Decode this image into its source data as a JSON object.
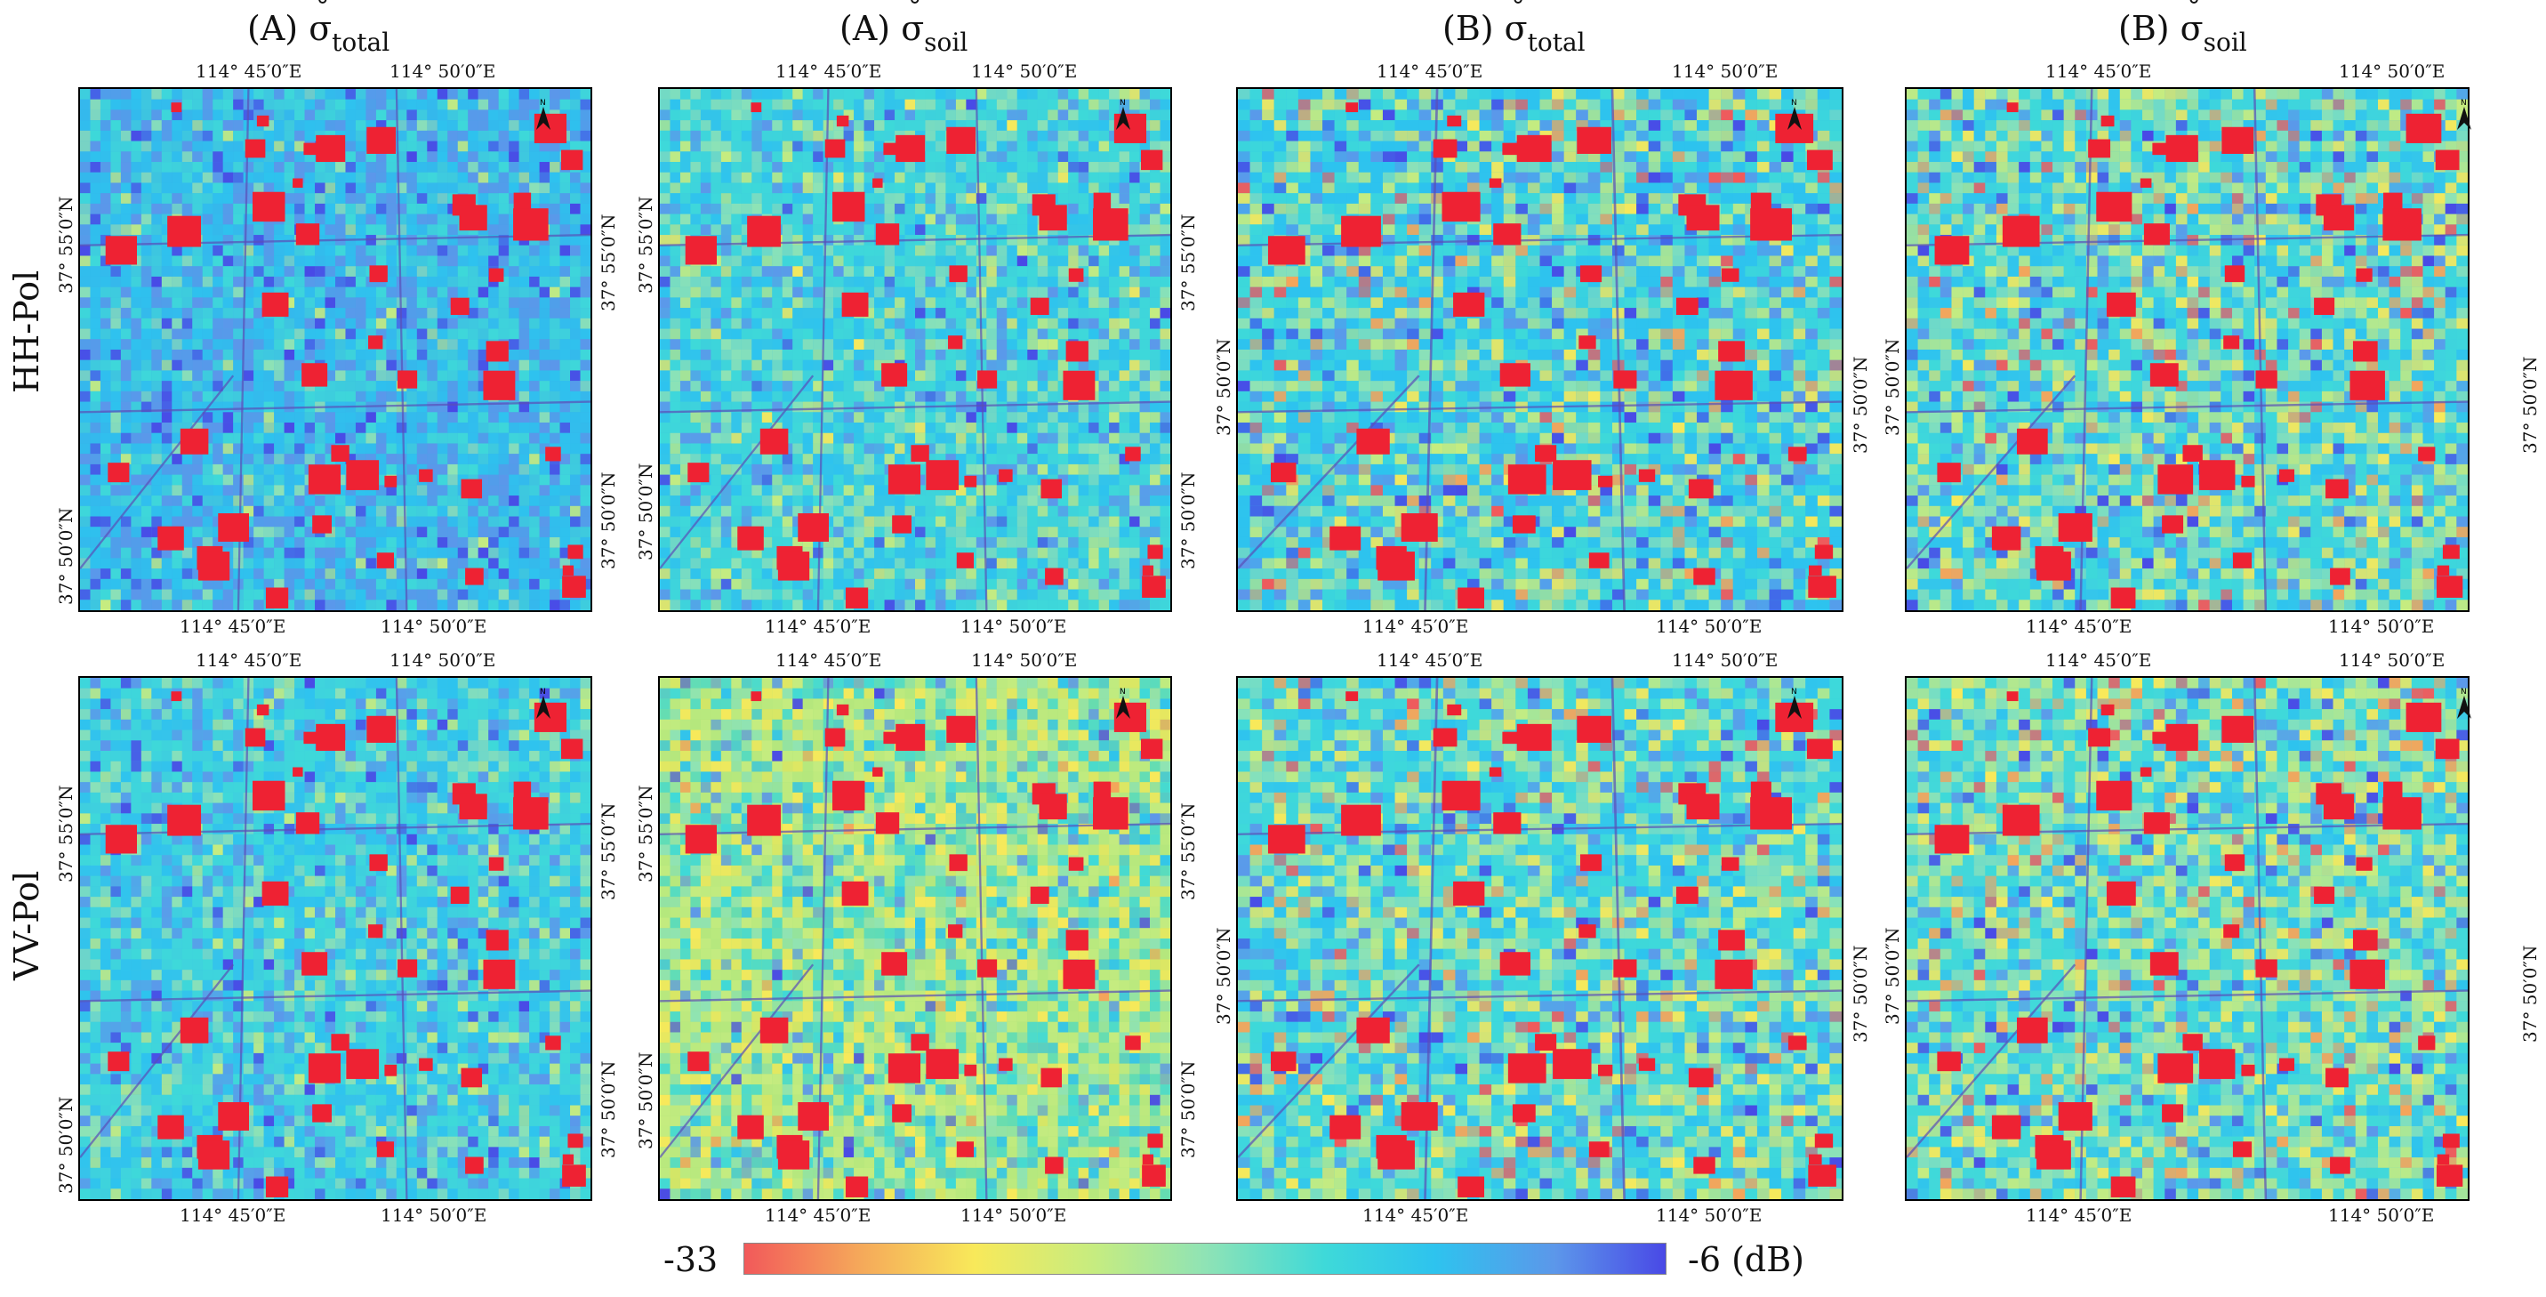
{
  "columns": [
    {
      "letter": "(A)",
      "symbol": "σ",
      "subscript": "total"
    },
    {
      "letter": "(A)",
      "symbol": "σ",
      "subscript": "soil"
    },
    {
      "letter": "(B)",
      "symbol": "σ",
      "subscript": "total"
    },
    {
      "letter": "(B)",
      "symbol": "σ",
      "subscript": "soil"
    }
  ],
  "rows": [
    {
      "label": "HH-Pol"
    },
    {
      "label": "VV-Pol"
    }
  ],
  "ticks": {
    "lon_left": "114° 45′0″E",
    "lon_right": "114° 50′0″E",
    "lat_a_upper": "37° 55′0″N",
    "lat_a_lower": "37° 50′0″N",
    "lat_b": "37° 50′0″N"
  },
  "colorbar": {
    "min_label": "-33",
    "max_label": "-6 (dB)",
    "min_value": -33,
    "max_value": -6
  },
  "colors": {
    "urban": "#ee2233",
    "low": "#f2595a",
    "high": "#4949e6"
  }
}
